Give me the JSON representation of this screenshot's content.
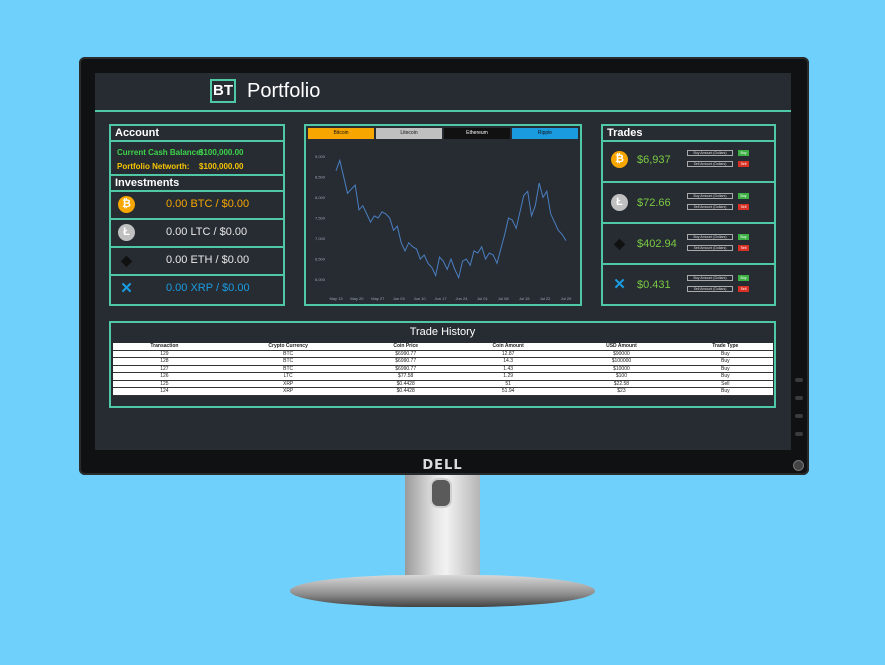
{
  "monitor": {
    "brand": "DELL"
  },
  "header": {
    "logo": "BT",
    "title": "Portfolio"
  },
  "colors": {
    "accent": "#4fc9a5",
    "btc": "#f7a600",
    "ltc": "#c0c0c0",
    "eth": "#111111",
    "xrp": "#1a9be0",
    "buy": "#3cb043",
    "sell": "#d93025",
    "gain": "#7ac943"
  },
  "account": {
    "heading": "Account",
    "cash_label": "Current Cash Balance:",
    "cash_value": "$100,000.00",
    "networth_label": "Portfolio Networth:",
    "networth_value": "$100,000.00"
  },
  "investments": {
    "heading": "Investments",
    "items": [
      {
        "icon": "bitcoin-icon",
        "text": "0.00 BTC / $0.00",
        "color": "#f7a600"
      },
      {
        "icon": "litecoin-icon",
        "text": "0.00 LTC / $0.00",
        "color": "#e8e8e8"
      },
      {
        "icon": "ethereum-icon",
        "text": "0.00 ETH / $0.00",
        "color": "#e8e8e8"
      },
      {
        "icon": "ripple-icon",
        "text": "0.00 XRP / $0.00",
        "color": "#1a9be0"
      }
    ]
  },
  "chart": {
    "tabs": [
      "Bitcoin",
      "Litecoin",
      "Ethereum",
      "Ripple"
    ],
    "y_ticks": [
      "9,000",
      "8,500",
      "8,000",
      "7,500",
      "7,000",
      "6,500",
      "6,000"
    ],
    "x_ticks": [
      "May 13",
      "May 20",
      "May 27",
      "Jun 03",
      "Jun 10",
      "Jun 17",
      "Jun 24",
      "Jul 01",
      "Jul 08",
      "Jul 15",
      "Jul 22",
      "Jul 29"
    ]
  },
  "chart_data": {
    "type": "line",
    "series": [
      {
        "values": [
          8650,
          8900,
          8500,
          8100,
          8200,
          8300,
          7700,
          7800,
          7600,
          7400,
          7550,
          7500,
          7650,
          7600,
          7500,
          7200,
          7300,
          6900,
          6700,
          6900,
          6800,
          6750,
          6500,
          6600,
          6400,
          6300,
          6100,
          6550,
          6450,
          6250,
          6500,
          6250,
          6050,
          6450,
          6500,
          6350,
          6700,
          6650,
          6800,
          6500,
          6650,
          6600,
          6400,
          6750,
          7100,
          7500,
          7450,
          7250,
          7650,
          8050,
          8150,
          7550,
          7800,
          8350,
          8000,
          8150,
          7600,
          7400,
          7200,
          7100,
          6950
        ]
      }
    ],
    "ylim": [
      5750,
      9250
    ],
    "xlabel": "",
    "ylabel": ""
  },
  "trades": {
    "heading": "Trades",
    "buy_placeholder": "Buy Amount (Dollars)",
    "sell_placeholder": "Sell Amount (Dollars)",
    "buy_label": "Buy",
    "sell_label": "Sell",
    "items": [
      {
        "icon": "bitcoin-icon",
        "price": "$6,937"
      },
      {
        "icon": "litecoin-icon",
        "price": "$72.66"
      },
      {
        "icon": "ethereum-icon",
        "price": "$402.94"
      },
      {
        "icon": "ripple-icon",
        "price": "$0.431"
      }
    ]
  },
  "history": {
    "heading": "Trade History",
    "columns": [
      "Transaction",
      "Crypto Currency",
      "Coin Price",
      "Coin Amount",
      "USD Amount",
      "Trade Type"
    ],
    "rows": [
      [
        "129",
        "BTC",
        "$6990.77",
        "12.87",
        "$90000",
        "Buy"
      ],
      [
        "128",
        "BTC",
        "$6990.77",
        "14.3",
        "$100000",
        "Buy"
      ],
      [
        "127",
        "BTC",
        "$6990.77",
        "1.43",
        "$10000",
        "Buy"
      ],
      [
        "126",
        "LTC",
        "$77.58",
        "1.29",
        "$100",
        "Buy"
      ],
      [
        "125",
        "XRP",
        "$0.4428",
        "51",
        "$22.58",
        "Sell"
      ],
      [
        "124",
        "XRP",
        "$0.4428",
        "51.94",
        "$23",
        "Buy"
      ]
    ]
  }
}
